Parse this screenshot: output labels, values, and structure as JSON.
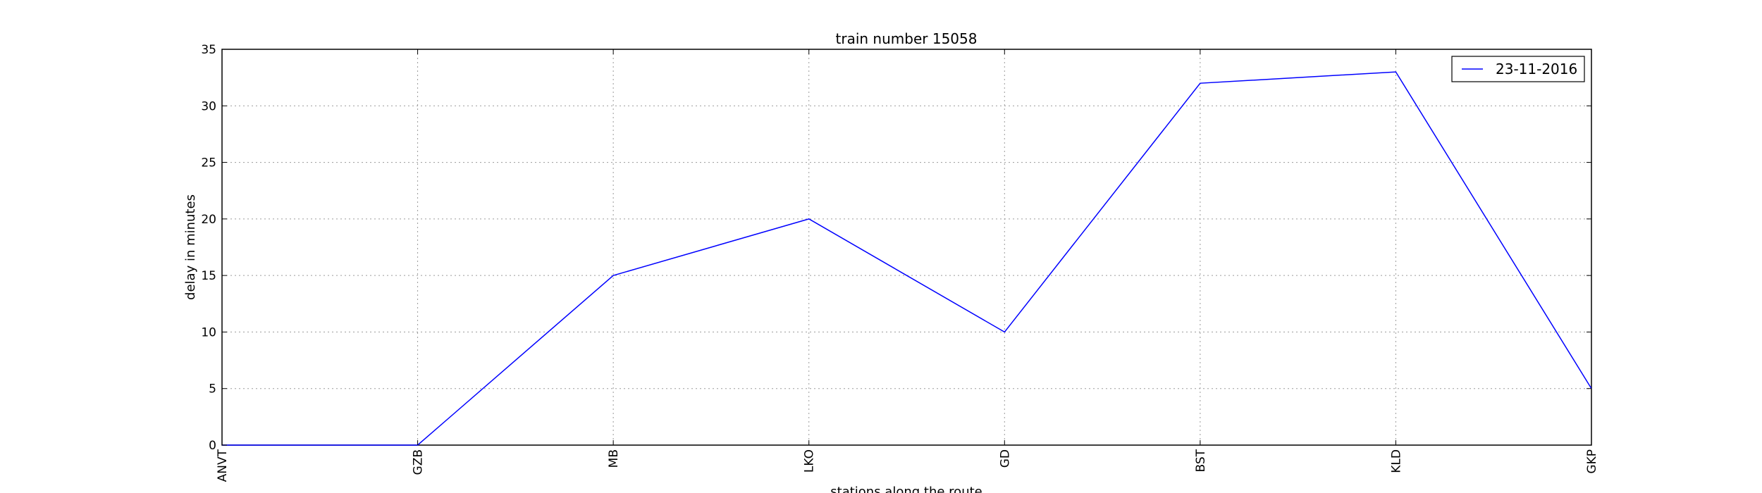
{
  "chart_data": {
    "type": "line",
    "title": "train number 15058",
    "xlabel": "stations along the route",
    "ylabel": "delay in minutes",
    "categories": [
      "ANVT",
      "GZB",
      "MB",
      "LKO",
      "GD",
      "BST",
      "KLD",
      "GKP"
    ],
    "series": [
      {
        "name": "23-11-2016",
        "values": [
          0,
          0,
          15,
          20,
          10,
          32,
          33,
          5
        ],
        "color": "#0000ff"
      }
    ],
    "ylim": [
      0,
      35
    ],
    "yticks": [
      0,
      5,
      10,
      15,
      20,
      25,
      30,
      35
    ],
    "grid": true,
    "legend_position": "top-right"
  }
}
